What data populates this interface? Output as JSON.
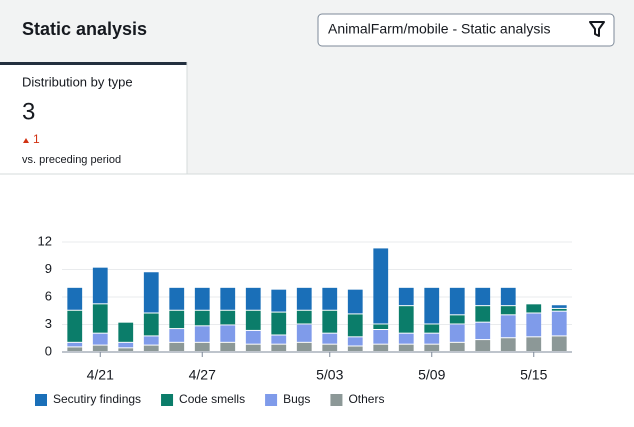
{
  "header": {
    "title": "Static analysis"
  },
  "filter": {
    "label": "AnimalFarm/mobile - Static analysis"
  },
  "card": {
    "title": "Distribution by type",
    "value": 3,
    "delta": 1,
    "caption": "vs. preceding period"
  },
  "chart_data": {
    "type": "bar",
    "stacked": true,
    "categories": [
      null,
      "4/21",
      null,
      null,
      null,
      "4/27",
      null,
      null,
      null,
      null,
      "5/03",
      null,
      null,
      null,
      "5/09",
      null,
      null,
      null,
      "5/15",
      null
    ],
    "series": [
      {
        "name": "Secutiry findings",
        "color": "#1a6fb8",
        "values": [
          2.5,
          4,
          0,
          4.5,
          2.5,
          2.5,
          2.5,
          2.5,
          2.5,
          2.5,
          2.5,
          2.7,
          8.3,
          2,
          4,
          3,
          2,
          2,
          0,
          0.4
        ]
      },
      {
        "name": "Code smells",
        "color": "#0b7d6a",
        "values": [
          3.5,
          3.2,
          2.2,
          2.5,
          2,
          1.7,
          1.6,
          2.2,
          2.5,
          1.5,
          2.5,
          2.5,
          0.6,
          3,
          1,
          1,
          1.8,
          1,
          1,
          0.3
        ]
      },
      {
        "name": "Bugs",
        "color": "#7f9bea",
        "values": [
          0.5,
          1.3,
          0.6,
          1,
          1.5,
          1.8,
          1.9,
          1.5,
          1,
          2,
          1.2,
          1,
          1.6,
          1.2,
          1.2,
          2,
          1.9,
          2.5,
          2.6,
          2.7
        ]
      },
      {
        "name": "Others",
        "color": "#8c9897",
        "values": [
          0.5,
          0.7,
          0.4,
          0.7,
          1,
          1,
          1,
          0.8,
          0.8,
          1,
          0.8,
          0.6,
          0.8,
          0.8,
          0.8,
          1,
          1.3,
          1.5,
          1.6,
          1.7
        ]
      }
    ],
    "ylim": [
      0,
      12
    ],
    "yticks": [
      0,
      3,
      6,
      9,
      12
    ],
    "grid": true
  }
}
